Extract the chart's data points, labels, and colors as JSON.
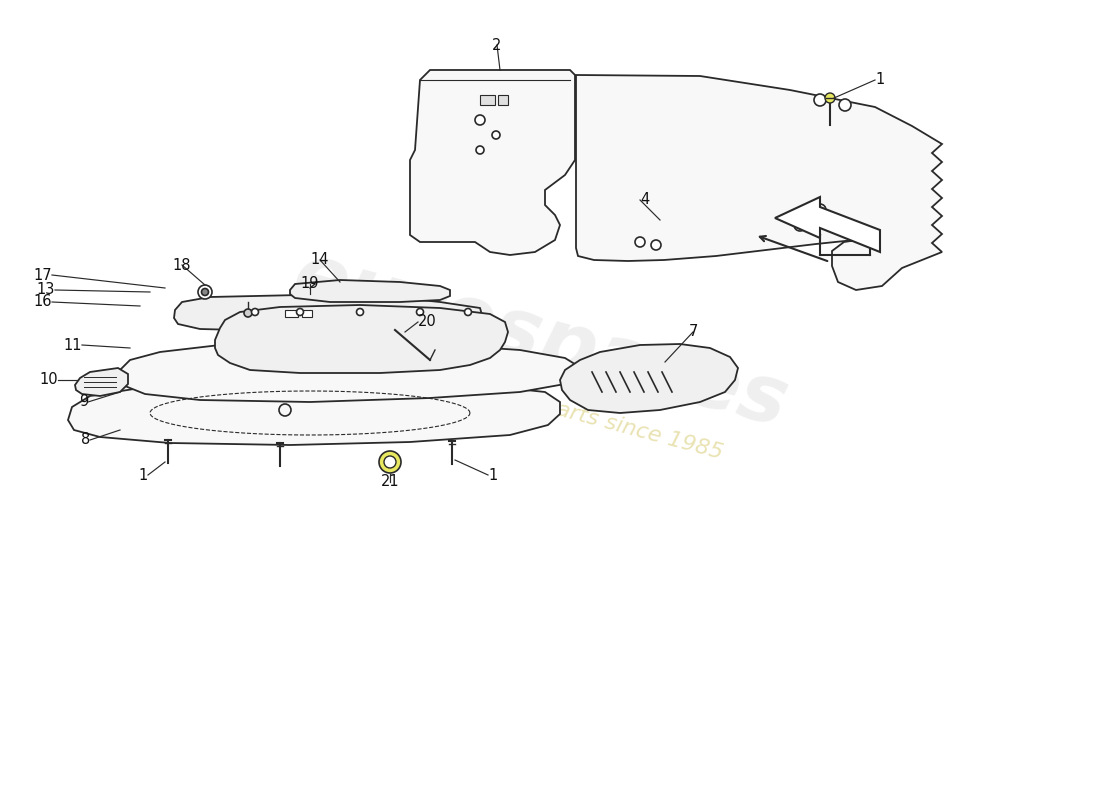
{
  "background_color": "#ffffff",
  "line_color": "#2a2a2a",
  "fill_color_light": "#f5f5f5",
  "fill_color_white": "#ffffff",
  "watermark_text1": "eurospares",
  "watermark_text2": "a passion for parts since 1985",
  "wm_color1": "#cccccc",
  "wm_color2": "#d4c870",
  "part_labels": [
    "1",
    "2",
    "4",
    "7",
    "8",
    "9",
    "10",
    "11",
    "13",
    "14",
    "16",
    "17",
    "18",
    "19",
    "20",
    "21"
  ]
}
